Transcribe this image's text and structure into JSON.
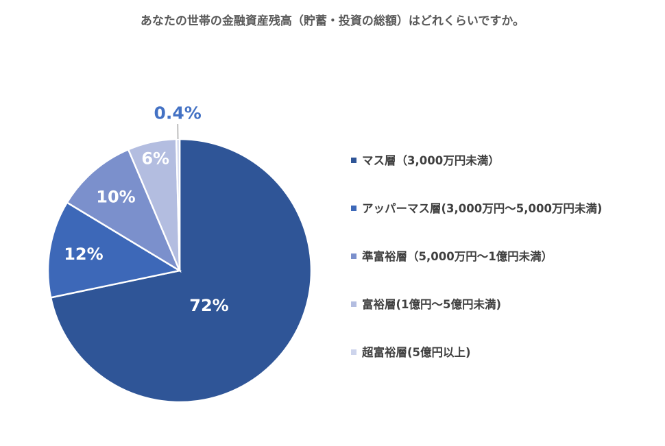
{
  "chart_data": {
    "type": "pie",
    "title": "あなたの世帯の金融資産残高（貯蓄・投資の総額）はどれくらいですか。",
    "categories": [
      "マス層（3,000万円未満）",
      "アッパーマス層(3,000万円～5,000万円未満)",
      "準富裕層（5,000万円～1億円未満）",
      "富裕層(1億円～5億円未満)",
      "超富裕層(5億円以上)"
    ],
    "values": [
      72,
      12,
      10,
      6,
      0.4
    ],
    "labels": [
      "72%",
      "12%",
      "10%",
      "6%",
      "0.4%"
    ],
    "colors": [
      "#2f5597",
      "#3d68b8",
      "#7b90cc",
      "#b3bde0",
      "#cdd4ec"
    ],
    "label_colors": [
      "#ffffff",
      "#ffffff",
      "#ffffff",
      "#ffffff",
      "#4472c4"
    ],
    "legend_position": "right"
  }
}
